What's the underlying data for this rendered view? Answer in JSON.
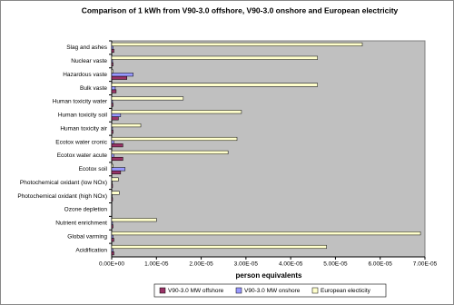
{
  "chart_data": {
    "type": "hbar",
    "title": "Comparison of 1 kWh from V90-3.0 offshore, V90-3.0 onshore and European electricity",
    "x_label": "person equivalents",
    "categories": [
      "Slag and ashes",
      "Nuclear vaste",
      "Hazardous vaste",
      "Bulk vaste",
      "Human toxicity water",
      "Human toxicity soil",
      "Human toxicity air",
      "Ecotox water cronic",
      "Ecotox water acute",
      "Ecotox soil",
      "Photochemical oxidant (low NOx)",
      "Photochemical oxidant (high NOx)",
      "Ozone depletion",
      "Nutrient enrichment",
      "Global varming",
      "Acidification"
    ],
    "series": [
      {
        "name": "V90-3.0 MW offshore",
        "color": "#993366",
        "values": [
          5e-07,
          3e-07,
          3.4e-06,
          1e-06,
          3e-07,
          1.5e-06,
          3e-07,
          2.5e-06,
          2.5e-06,
          2e-06,
          2e-07,
          2e-07,
          0,
          3e-07,
          5e-07,
          5e-07
        ]
      },
      {
        "name": "V90-3.0 MW onshore",
        "color": "#9999ff",
        "values": [
          3e-07,
          2e-07,
          4.8e-06,
          8e-07,
          2e-07,
          2e-06,
          2e-07,
          5e-07,
          5e-07,
          3e-06,
          1e-07,
          1e-07,
          0,
          2e-07,
          3e-07,
          3e-07
        ]
      },
      {
        "name": "European electicity",
        "color": "#ffffcc",
        "values": [
          5.6e-05,
          4.6e-05,
          3e-07,
          4.6e-05,
          1.6e-05,
          2.9e-05,
          6.5e-06,
          2.8e-05,
          2.6e-05,
          3e-07,
          1.5e-06,
          1.7e-06,
          0,
          1e-05,
          6.9e-05,
          4.8e-05
        ]
      }
    ],
    "xlim": [
      0,
      7e-05
    ],
    "xticks": [
      {
        "value": 0,
        "label": "0.00E+00"
      },
      {
        "value": 1e-05,
        "label": "1.00E-05"
      },
      {
        "value": 2e-05,
        "label": "2.00E-05"
      },
      {
        "value": 3e-05,
        "label": "3.00E-05"
      },
      {
        "value": 4e-05,
        "label": "4.00E-05"
      },
      {
        "value": 5e-05,
        "label": "5.00E-05"
      },
      {
        "value": 6e-05,
        "label": "6.00E-05"
      },
      {
        "value": 7e-05,
        "label": "7.00E-05"
      }
    ],
    "plot_background": "#c0c0c0",
    "legend": "bottom"
  }
}
